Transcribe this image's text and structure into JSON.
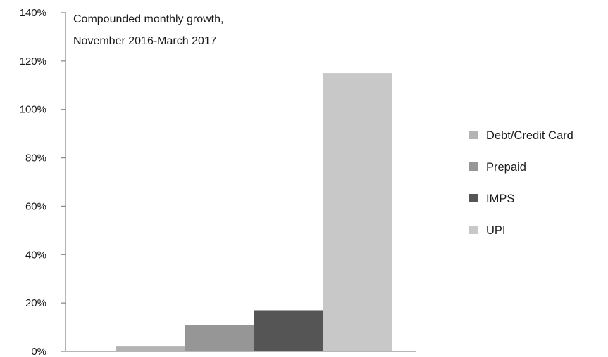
{
  "chart_data": {
    "type": "bar",
    "title_lines": [
      "Compounded  monthly growth,",
      "November  2016-March 2017"
    ],
    "series": [
      {
        "name": "Debt/Credit Card",
        "value": 2,
        "color": "#b3b3b3"
      },
      {
        "name": "Prepaid",
        "value": 11,
        "color": "#969696"
      },
      {
        "name": "IMPS",
        "value": 17,
        "color": "#555555"
      },
      {
        "name": "UPI",
        "value": 115,
        "color": "#c8c8c8"
      }
    ],
    "ylim": [
      0,
      140
    ],
    "yticks": [
      0,
      20,
      40,
      60,
      80,
      100,
      120,
      140
    ],
    "ytick_labels": [
      "0%",
      "20%",
      "40%",
      "60%",
      "80%",
      "100%",
      "120%",
      "140%"
    ],
    "grid": false,
    "legend_position": "right"
  }
}
